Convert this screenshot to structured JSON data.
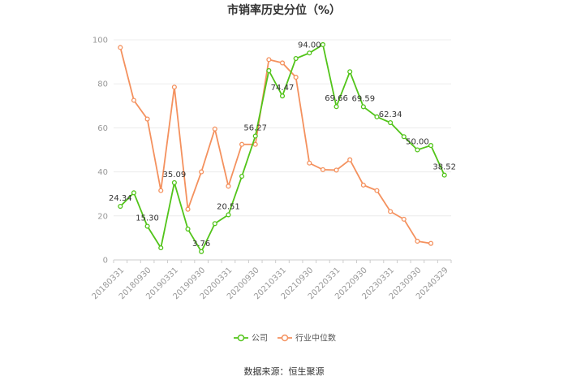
{
  "chart_data": {
    "type": "line",
    "title": "市销率历史分位（%）",
    "source": "数据来源：恒生聚源",
    "ylim": [
      0,
      100
    ],
    "yticks": [
      0,
      20,
      40,
      60,
      80,
      100
    ],
    "grid": true,
    "legend_position": "bottom",
    "categories": [
      "20180331",
      "20180630",
      "20180930",
      "20181231",
      "20190331",
      "20190630",
      "20190930",
      "20191231",
      "20200331",
      "20200630",
      "20200930",
      "20201231",
      "20210331",
      "20210630",
      "20210930",
      "20211231",
      "20220331",
      "20220630",
      "20220930",
      "20221231",
      "20230331",
      "20230630",
      "20230930",
      "20231231",
      "20240329"
    ],
    "xtick_labels": [
      "20180331",
      "20180930",
      "20190331",
      "20190930",
      "20200331",
      "20200930",
      "20210331",
      "20210930",
      "20220331",
      "20220930",
      "20230331",
      "20230930",
      "20240329"
    ],
    "series": [
      {
        "name": "公司",
        "color": "#52c41a",
        "values": [
          24.34,
          30.5,
          15.3,
          5.5,
          35.09,
          14.0,
          3.76,
          16.5,
          20.51,
          38.0,
          56.27,
          86.0,
          74.47,
          91.5,
          94.0,
          97.8,
          69.66,
          85.5,
          69.59,
          65.0,
          62.34,
          56.0,
          50.0,
          52.0,
          38.52
        ],
        "labels": [
          "24.34",
          null,
          "15.30",
          null,
          "35.09",
          null,
          "3.76",
          null,
          "20.51",
          null,
          "56.27",
          null,
          "74.47",
          null,
          "94.00",
          null,
          "69.66",
          null,
          "69.59",
          null,
          "62.34",
          null,
          "50.00",
          null,
          "38.52"
        ]
      },
      {
        "name": "行业中位数",
        "color": "#f4915e",
        "values": [
          96.5,
          72.5,
          64.0,
          31.5,
          78.5,
          23.0,
          40.0,
          59.5,
          33.5,
          52.5,
          52.5,
          91.0,
          89.5,
          83.0,
          44.0,
          41.0,
          40.8,
          45.5,
          34.0,
          31.5,
          22.0,
          18.5,
          8.5,
          7.5,
          null
        ]
      }
    ]
  }
}
